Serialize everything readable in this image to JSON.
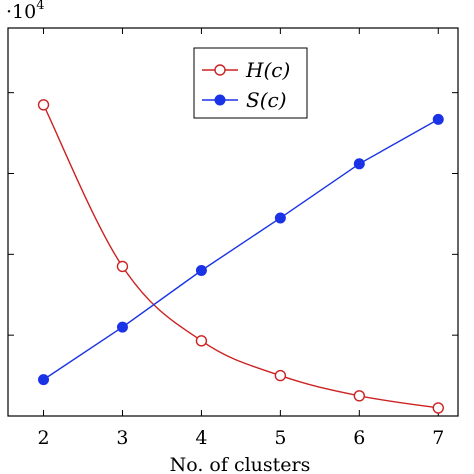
{
  "chart_data": {
    "type": "line",
    "x": [
      2,
      3,
      4,
      5,
      6,
      7
    ],
    "x_ticks": [
      "2",
      "3",
      "4",
      "5",
      "6",
      "7"
    ],
    "xlabel": "No. of clusters",
    "ylabel": "",
    "y_multiplier": {
      "base": "·10",
      "exponent": "4"
    },
    "xlim": [
      1.55,
      7.25
    ],
    "ylim": [
      0,
      4.8
    ],
    "grid": false,
    "legend_position": "top-center",
    "series": [
      {
        "name": "H(c)",
        "legend_label": "H(c)",
        "color": "#cc2222",
        "marker": "open-circle",
        "values": [
          3.85,
          1.85,
          0.93,
          0.5,
          0.25,
          0.1
        ]
      },
      {
        "name": "S(c)",
        "legend_label": "S(c)",
        "color": "#1a33e6",
        "marker": "filled-circle",
        "values": [
          0.45,
          1.1,
          1.8,
          2.45,
          3.12,
          3.67
        ]
      }
    ]
  }
}
